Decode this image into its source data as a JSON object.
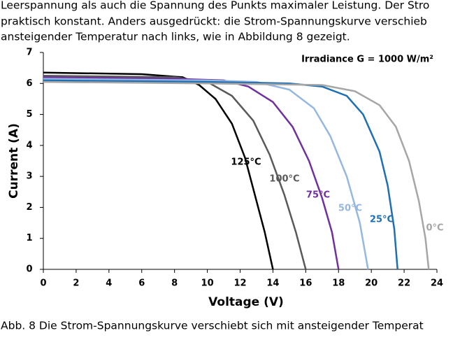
{
  "text_lines": [
    "Leerspannung als auch die Spannung des Punkts maximaler Leistung. Der Stro",
    "praktisch konstant. Anders ausgedrückt: die Strom-Spannungskurve verschieb",
    "ansteigender Temperatur nach links, wie in Abbildung 8 gezeigt."
  ],
  "chart_data": {
    "type": "line",
    "annotation": "Irradiance G = 1000 W/m²",
    "xlabel": "Voltage (V)",
    "ylabel": "Current (A)",
    "xlim": [
      0,
      24
    ],
    "xticks": [
      0,
      2,
      4,
      6,
      8,
      10,
      12,
      14,
      16,
      18,
      20,
      22,
      24
    ],
    "ylim": [
      0,
      7
    ],
    "yticks": [
      0,
      1,
      2,
      3,
      4,
      5,
      6,
      7
    ],
    "grid": false,
    "series": [
      {
        "name": "125°C",
        "color": "#000000",
        "x": [
          0,
          6,
          8.5,
          9.5,
          10.5,
          11.5,
          12.3,
          12.9,
          13.5,
          14
        ],
        "values": [
          6.35,
          6.3,
          6.2,
          5.95,
          5.5,
          4.7,
          3.6,
          2.4,
          1.2,
          0
        ]
      },
      {
        "name": "100°C",
        "color": "#595959",
        "x": [
          0,
          8,
          10,
          11.5,
          12.8,
          13.8,
          14.7,
          15.4,
          16
        ],
        "values": [
          6.25,
          6.2,
          6.05,
          5.6,
          4.8,
          3.7,
          2.4,
          1.2,
          0
        ]
      },
      {
        "name": "75°C",
        "color": "#7030a0",
        "x": [
          0,
          8,
          11,
          12.5,
          14,
          15.2,
          16.2,
          17,
          17.6,
          18
        ],
        "values": [
          6.2,
          6.15,
          6.1,
          5.9,
          5.4,
          4.6,
          3.5,
          2.3,
          1.2,
          0
        ]
      },
      {
        "name": "50°C",
        "color": "#95b8e0",
        "x": [
          0,
          10,
          13,
          15,
          16.5,
          17.5,
          18.5,
          19.3,
          19.8
        ],
        "values": [
          6.15,
          6.1,
          6.05,
          5.8,
          5.2,
          4.3,
          3.0,
          1.5,
          0
        ]
      },
      {
        "name": "25°C",
        "color": "#1f6fb4",
        "x": [
          0,
          10,
          15,
          17,
          18.5,
          19.5,
          20.5,
          21,
          21.4,
          21.6
        ],
        "values": [
          6.1,
          6.05,
          6.0,
          5.9,
          5.6,
          5.0,
          3.8,
          2.7,
          1.3,
          0
        ]
      },
      {
        "name": "0°C",
        "color": "#a6a6a6",
        "x": [
          0,
          10,
          17,
          19,
          20.5,
          21.5,
          22.3,
          22.9,
          23.3,
          23.5
        ],
        "values": [
          6.05,
          6.0,
          5.95,
          5.75,
          5.3,
          4.6,
          3.5,
          2.2,
          1.0,
          0
        ]
      }
    ]
  },
  "caption": "Abb. 8 Die Strom-Spannungskurve verschiebt sich mit ansteigender Temperat"
}
